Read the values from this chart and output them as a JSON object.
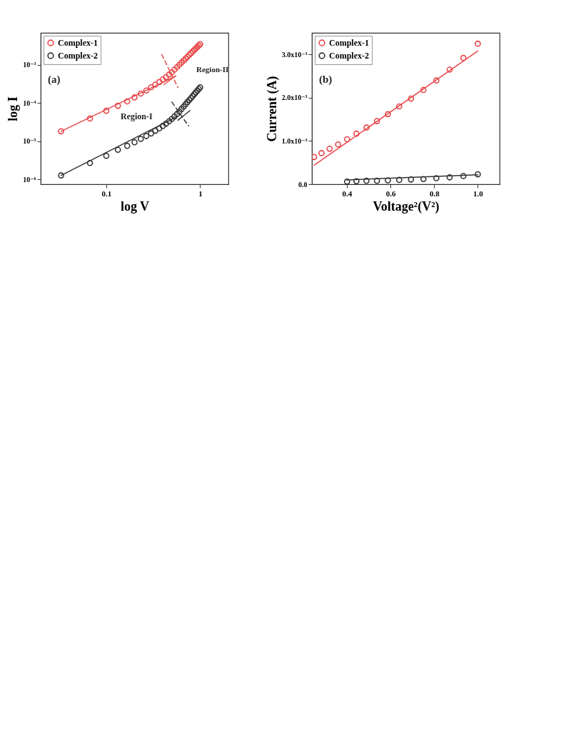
{
  "chart_data": [
    {
      "type": "scatter",
      "xlabel": "log V",
      "ylabel": "log I",
      "log": "xy",
      "xlim": [
        0.02,
        2
      ],
      "ylim": [
        7.4e-07,
        0.0068
      ],
      "xticks": [
        0.1,
        1
      ],
      "yticks": [
        {
          "value": 1e-06,
          "label": "10⁻⁶"
        },
        {
          "value": 1e-05,
          "label": "10⁻⁵"
        },
        {
          "value": 0.0001,
          "label": "10⁻⁴"
        },
        {
          "value": 0.001,
          "label": "10⁻³"
        }
      ],
      "legend": "top left",
      "annotations": [
        "(a)",
        "Region-I",
        "Region-II"
      ],
      "x": [
        0.033,
        0.067,
        0.1,
        0.133,
        0.167,
        0.2,
        0.233,
        0.267,
        0.3,
        0.333,
        0.367,
        0.4,
        0.433,
        0.467,
        0.5,
        0.533,
        0.567,
        0.6,
        0.633,
        0.667,
        0.7,
        0.733,
        0.767,
        0.8,
        0.833,
        0.867,
        0.9,
        0.933,
        0.967,
        1
      ],
      "series": [
        {
          "name": "Complex-1",
          "color": "#e8474a",
          "marker": "circle",
          "values": [
            1.8e-05,
            3.9e-05,
            6.2e-05,
            8.4e-05,
            0.000109,
            0.000139,
            0.000175,
            0.00021,
            0.000255,
            0.0003,
            0.00035,
            0.00041,
            0.00047,
            0.00055,
            0.00063,
            0.00074,
            0.00086,
            0.00099,
            0.00113,
            0.00128,
            0.00144,
            0.00161,
            0.00181,
            0.002,
            0.00222,
            0.00244,
            0.00267,
            0.00292,
            0.00318,
            0.00345
          ]
        },
        {
          "name": "Complex-2",
          "color": "#333333",
          "marker": "circle",
          "values": [
            1.26e-06,
            2.66e-06,
            4.1e-06,
            5.9e-06,
            7.5e-06,
            9.3e-06,
            1.14e-05,
            1.35e-05,
            1.58e-05,
            1.86e-05,
            2.15e-05,
            2.48e-05,
            2.86e-05,
            3.3e-05,
            3.8e-05,
            4.4e-05,
            5.1e-05,
            5.9e-05,
            6.9e-05,
            8e-05,
            9.2e-05,
            0.000105,
            0.000119,
            0.000134,
            0.000151,
            0.000169,
            0.000188,
            0.000209,
            0.000231,
            0.000255
          ]
        },
        {
          "type": "line",
          "color": "#e8474a",
          "x": [
            0.033,
            0.55
          ],
          "values": [
            1.8e-05,
            0.0005
          ]
        },
        {
          "type": "line",
          "color": "#e8474a",
          "x": [
            0.41,
            0.55
          ],
          "values": [
            0.0003,
            0.00051
          ]
        },
        {
          "type": "line",
          "color": "#e8474a",
          "line_style": "dashed",
          "x": [
            0.39,
            0.58
          ],
          "values": [
            0.00185,
            0.00025
          ]
        },
        {
          "type": "line",
          "color": "#333333",
          "x": [
            0.033,
            0.57
          ],
          "values": [
            1.26e-06,
            4.4e-05
          ]
        },
        {
          "type": "line",
          "color": "#333333",
          "x": [
            0.58,
            0.78
          ],
          "values": [
            3.5e-05,
            6.3e-05
          ]
        },
        {
          "type": "line",
          "color": "#333333",
          "line_style": "dashed",
          "x": [
            0.5,
            0.75
          ],
          "values": [
            0.000105,
            2.5e-05
          ]
        }
      ]
    },
    {
      "type": "scatter",
      "xlabel": "Voltage²(V²)",
      "ylabel": "Current (A)",
      "xlim": [
        0.24,
        1.1
      ],
      "ylim": [
        0,
        0.0035
      ],
      "xticks": [
        0.4,
        0.6,
        0.8,
        {
          "value": 1,
          "label": "1.0"
        }
      ],
      "yticks": [
        {
          "value": 0,
          "label": "0.0"
        },
        {
          "value": 0.001,
          "label": "1.0x10⁻³"
        },
        {
          "value": 0.002,
          "label": "2.0x10⁻³"
        },
        {
          "value": 0.003,
          "label": "3.0x10⁻³"
        }
      ],
      "legend": "top left",
      "annotations": [
        "(b)"
      ],
      "series": [
        {
          "name": "Complex-1",
          "color": "#e8474a",
          "marker": "circle",
          "x": [
            0.25,
            0.284,
            0.321,
            0.36,
            0.401,
            0.444,
            0.49,
            0.538,
            0.588,
            0.64,
            0.694,
            0.751,
            0.81,
            0.871,
            0.934,
            1
          ],
          "values": [
            0.00063,
            0.00072,
            0.00082,
            0.00092,
            0.00104,
            0.00117,
            0.00131,
            0.00146,
            0.00162,
            0.0018,
            0.00198,
            0.00218,
            0.0024,
            0.00265,
            0.00292,
            0.00325
          ]
        },
        {
          "name": "Complex-2",
          "color": "#333333",
          "marker": "circle",
          "x": [
            0.401,
            0.444,
            0.49,
            0.538,
            0.588,
            0.64,
            0.694,
            0.751,
            0.81,
            0.871,
            0.934,
            1
          ],
          "values": [
            6e-05,
            7e-05,
            8e-05,
            8e-05,
            9e-05,
            0.0001,
            0.00011,
            0.00012,
            0.00014,
            0.00016,
            0.00019,
            0.00023
          ]
        },
        {
          "type": "line",
          "color": "#e8474a",
          "x": [
            0.25,
            1
          ],
          "values": [
            0.00044,
            0.00308
          ]
        },
        {
          "type": "line",
          "color": "#333333",
          "x": [
            0.4,
            1
          ],
          "values": [
            0.0001,
            0.00022
          ]
        }
      ]
    }
  ]
}
